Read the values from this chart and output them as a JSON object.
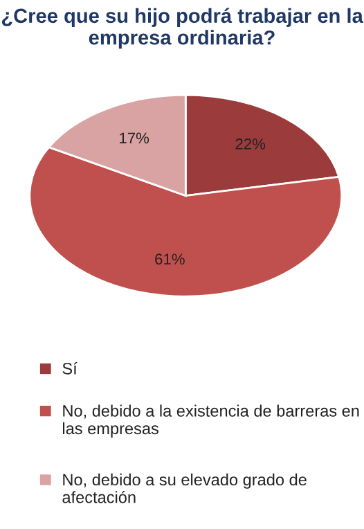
{
  "chart_data": {
    "type": "pie",
    "title": "¿Cree que su hijo podrá trabajar en la empresa ordinaria?",
    "categories": [
      "Sí",
      "No, debido a la existencia de barreras en las empresas",
      "No, debido a su elevado grado de afectación"
    ],
    "values": [
      22,
      61,
      17
    ],
    "colors": [
      "#9c3b3b",
      "#c0504d",
      "#d9a3a3"
    ],
    "value_labels": [
      "22%",
      "61%",
      "17%"
    ],
    "legend": "bottom"
  }
}
